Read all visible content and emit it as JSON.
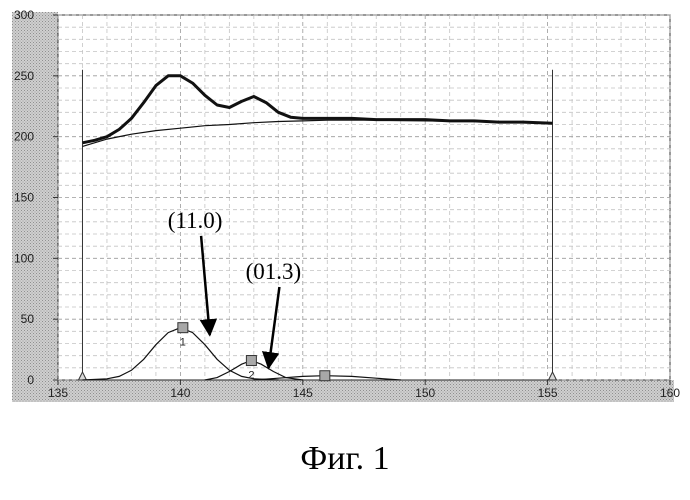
{
  "chart_data": {
    "type": "line",
    "xlim": [
      135,
      160
    ],
    "ylim": [
      0,
      300
    ],
    "x_ticks": [
      "135",
      "140",
      "145",
      "150",
      "155",
      "160"
    ],
    "y_ticks": [
      "0",
      "50",
      "100",
      "150",
      "200",
      "250",
      "300"
    ],
    "grid": true,
    "range_markers": [
      136,
      155.2
    ],
    "series": [
      {
        "role": "measured",
        "x": [
          136.0,
          136.5,
          137.0,
          137.5,
          138.0,
          138.5,
          139.0,
          139.5,
          140.0,
          140.5,
          141.0,
          141.5,
          142.0,
          142.5,
          143.0,
          143.5,
          144.0,
          144.5,
          145.0,
          146.0,
          147.0,
          148.0,
          149.0,
          150.0,
          151.0,
          152.0,
          153.0,
          154.0,
          155.2
        ],
        "y": [
          195,
          197,
          200,
          206,
          215,
          228,
          242,
          250,
          250,
          244,
          234,
          226,
          224,
          229,
          233,
          228,
          220,
          216,
          215,
          215,
          215,
          214,
          214,
          214,
          213,
          213,
          212,
          212,
          211
        ]
      },
      {
        "role": "background",
        "x": [
          136.0,
          137.0,
          138.0,
          139.0,
          140.0,
          141.0,
          142.0,
          143.0,
          144.0,
          145.0,
          146.0,
          148.0,
          150.0,
          152.0,
          155.2
        ],
        "y": [
          192,
          198,
          202,
          205,
          207,
          209,
          210,
          211.5,
          212.5,
          213,
          213.5,
          213.5,
          213,
          212.5,
          211
        ]
      },
      {
        "role": "peak",
        "x": [
          136.0,
          137.0,
          137.5,
          138.0,
          138.5,
          139.0,
          139.5,
          140.0,
          140.5,
          141.0,
          141.5,
          142.0,
          142.5,
          143.0,
          144.0
        ],
        "y": [
          0,
          1,
          3,
          8,
          17,
          29,
          39,
          43,
          39,
          29,
          17,
          8,
          3,
          1,
          0
        ]
      },
      {
        "role": "peak",
        "x": [
          141.0,
          141.5,
          142.0,
          142.5,
          142.9,
          143.3,
          143.8,
          144.3,
          145.0
        ],
        "y": [
          0,
          2,
          7,
          13,
          16,
          13,
          7,
          2,
          0
        ]
      },
      {
        "role": "peak",
        "x": [
          143.0,
          144.0,
          145.0,
          145.9,
          147.0,
          148.0,
          149.0
        ],
        "y": [
          0,
          1.5,
          3,
          3.5,
          3,
          1.5,
          0
        ]
      }
    ],
    "peak_markers": [
      {
        "x": 140.1,
        "y": 43,
        "label": "1"
      },
      {
        "x": 142.9,
        "y": 16,
        "label": "2"
      },
      {
        "x": 145.9,
        "y": 3.5,
        "label": ""
      }
    ],
    "annotations": [
      {
        "text": "(11.0)",
        "text_at": [
          140.6,
          125
        ],
        "arrow_to": [
          141.2,
          37
        ]
      },
      {
        "text": "(01.3)",
        "text_at": [
          143.8,
          83
        ],
        "arrow_to": [
          143.6,
          10
        ]
      }
    ],
    "caption": "Фиг. 1"
  }
}
